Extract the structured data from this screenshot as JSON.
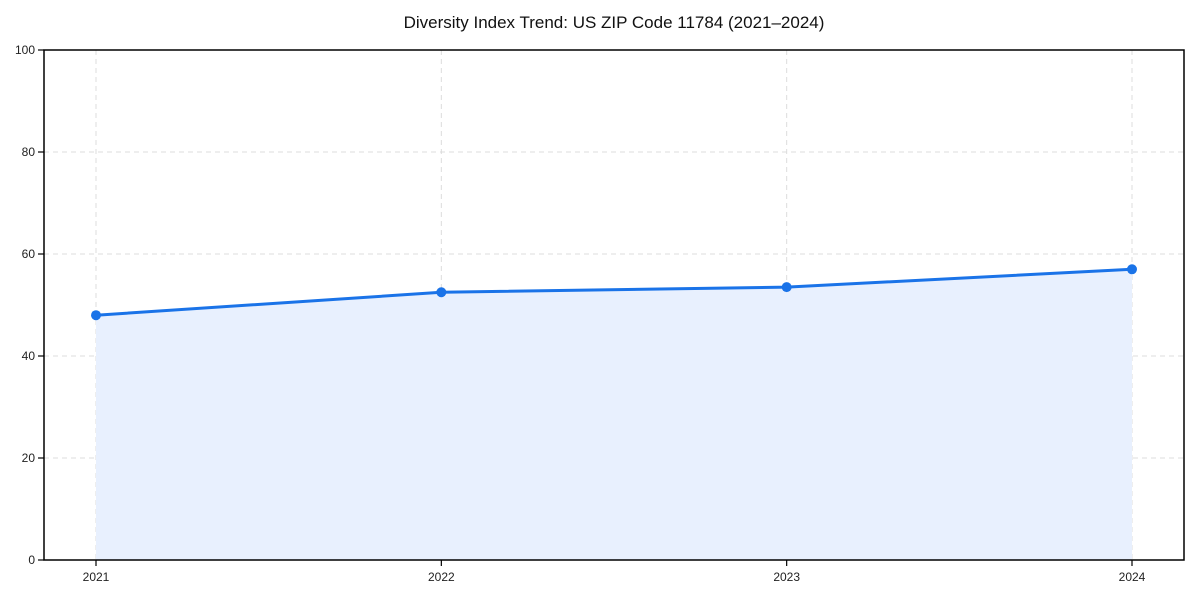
{
  "chart_data": {
    "type": "area",
    "title": "Diversity Index Trend: US ZIP Code 11784 (2021–2024)",
    "xlabel": "",
    "ylabel": "",
    "categories": [
      "2021",
      "2022",
      "2023",
      "2024"
    ],
    "series": [
      {
        "name": "Diversity Index",
        "values": [
          48,
          52.5,
          53.5,
          57
        ]
      }
    ],
    "ylim": [
      0,
      100
    ],
    "yticks": [
      0,
      20,
      40,
      60,
      80,
      100
    ],
    "grid": true,
    "grid_style": "dashed",
    "legend_position": "none",
    "colors": {
      "line": "#1a73e8",
      "marker": "#1a73e8",
      "fill": "#e8f0fe",
      "grid": "#dcdcdc",
      "spine": "#000000",
      "tick_text": "#222222",
      "title_text": "#111111",
      "background": "#ffffff"
    }
  }
}
